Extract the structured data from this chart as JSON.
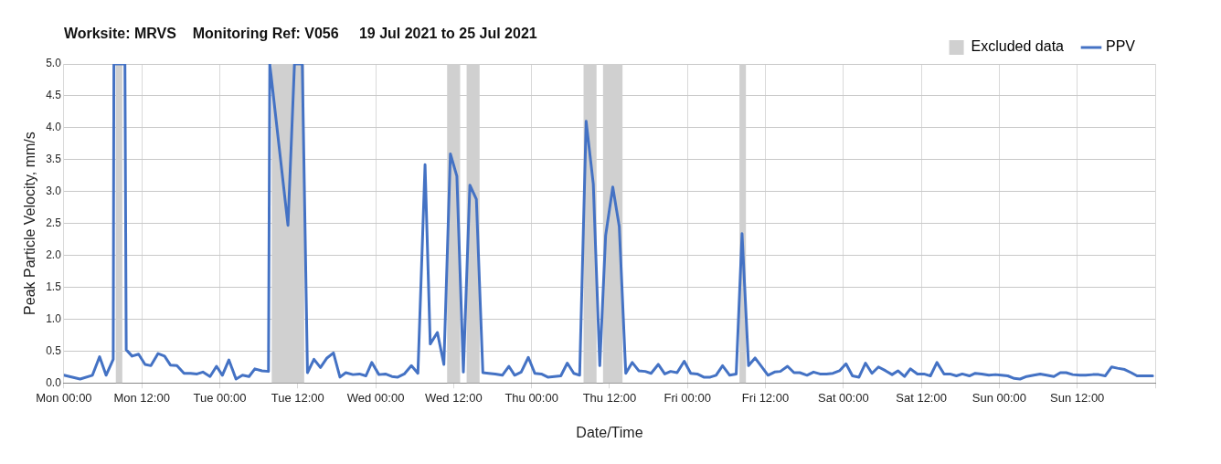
{
  "chart_data": {
    "type": "line",
    "title": "Worksite: MRVS    Monitoring Ref: V056     19 Jul 2021 to 25 Jul 2021",
    "xlabel": "Date/Time",
    "ylabel": "Peak Particle Velocity, mm/s",
    "xlim": [
      "2021-07-19T00:00",
      "2021-07-26T00:00"
    ],
    "xticks": [
      {
        "value": "2021-07-19T00:00",
        "label": "Mon 00:00"
      },
      {
        "value": "2021-07-19T12:00",
        "label": "Mon 12:00"
      },
      {
        "value": "2021-07-20T00:00",
        "label": "Tue 00:00"
      },
      {
        "value": "2021-07-20T12:00",
        "label": "Tue 12:00"
      },
      {
        "value": "2021-07-21T00:00",
        "label": "Wed 00:00"
      },
      {
        "value": "2021-07-21T12:00",
        "label": "Wed 12:00"
      },
      {
        "value": "2021-07-22T00:00",
        "label": "Thu 00:00"
      },
      {
        "value": "2021-07-22T12:00",
        "label": "Thu 12:00"
      },
      {
        "value": "2021-07-23T00:00",
        "label": "Fri 00:00"
      },
      {
        "value": "2021-07-23T12:00",
        "label": "Fri 12:00"
      },
      {
        "value": "2021-07-24T00:00",
        "label": "Sat 00:00"
      },
      {
        "value": "2021-07-24T12:00",
        "label": "Sat 12:00"
      },
      {
        "value": "2021-07-25T00:00",
        "label": "Sun 00:00"
      },
      {
        "value": "2021-07-25T12:00",
        "label": "Sun 12:00"
      },
      {
        "value": "2021-07-26T00:00",
        "label": null
      }
    ],
    "ylim": [
      0,
      5
    ],
    "yticks": [
      {
        "value": 0,
        "label": "0.0"
      },
      {
        "value": 0.5,
        "label": "0.5"
      },
      {
        "value": 1,
        "label": "1.0"
      },
      {
        "value": 1.5,
        "label": "1.5"
      },
      {
        "value": 2,
        "label": "2.0"
      },
      {
        "value": 2.5,
        "label": "2.5"
      },
      {
        "value": 3,
        "label": "3.0"
      },
      {
        "value": 3.5,
        "label": "3.5"
      },
      {
        "value": 4,
        "label": "4.0"
      },
      {
        "value": 4.5,
        "label": "4.5"
      },
      {
        "value": 5,
        "label": "5.0"
      }
    ],
    "grid": true,
    "legend": "top right",
    "marker": "none",
    "line_style": "solid",
    "bands": [
      {
        "axis": "x",
        "from": "2021-07-19T08:00",
        "to": "2021-07-19T09:00",
        "label": "Excluded data",
        "color": "#d0d0d0"
      },
      {
        "axis": "x",
        "from": "2021-07-20T08:00",
        "to": "2021-07-20T13:00",
        "color": "#d0d0d0"
      },
      {
        "axis": "x",
        "from": "2021-07-21T11:00",
        "to": "2021-07-21T13:00",
        "color": "#d0d0d0"
      },
      {
        "axis": "x",
        "from": "2021-07-21T14:00",
        "to": "2021-07-21T16:00",
        "color": "#d0d0d0"
      },
      {
        "axis": "x",
        "from": "2021-07-22T08:00",
        "to": "2021-07-22T10:00",
        "color": "#d0d0d0"
      },
      {
        "axis": "x",
        "from": "2021-07-22T11:00",
        "to": "2021-07-22T14:00",
        "color": "#d0d0d0"
      },
      {
        "axis": "x",
        "from": "2021-07-23T08:00",
        "to": "2021-07-23T09:00",
        "color": "#d0d0d0"
      }
    ],
    "series": [
      {
        "name": "PPV",
        "color": "#4472c4",
        "x": [
          "2021-07-19T00:00",
          "2021-07-19T02:30",
          "2021-07-19T04:24",
          "2021-07-19T05:30",
          "2021-07-19T06:30",
          "2021-07-19T07:36",
          "2021-07-19T07:42",
          "2021-07-19T09:24",
          "2021-07-19T09:36",
          "2021-07-19T10:30",
          "2021-07-19T11:30",
          "2021-07-19T12:30",
          "2021-07-19T13:24",
          "2021-07-19T14:30",
          "2021-07-19T15:30",
          "2021-07-19T16:24",
          "2021-07-19T17:24",
          "2021-07-19T18:30",
          "2021-07-19T19:30",
          "2021-07-19T20:30",
          "2021-07-19T21:24",
          "2021-07-19T22:30",
          "2021-07-19T23:30",
          "2021-07-20T00:24",
          "2021-07-20T01:24",
          "2021-07-20T02:30",
          "2021-07-20T03:30",
          "2021-07-20T04:30",
          "2021-07-20T05:24",
          "2021-07-20T06:30",
          "2021-07-20T07:30",
          "2021-07-20T07:42",
          "2021-07-20T10:30",
          "2021-07-20T11:30",
          "2021-07-20T12:42",
          "2021-07-20T13:30",
          "2021-07-20T14:30",
          "2021-07-20T15:30",
          "2021-07-20T16:30",
          "2021-07-20T17:30",
          "2021-07-20T18:30",
          "2021-07-20T19:24",
          "2021-07-20T20:30",
          "2021-07-20T21:30",
          "2021-07-20T22:30",
          "2021-07-20T23:24",
          "2021-07-21T00:30",
          "2021-07-21T01:30",
          "2021-07-21T02:30",
          "2021-07-21T03:24",
          "2021-07-21T04:24",
          "2021-07-21T05:30",
          "2021-07-21T06:30",
          "2021-07-21T07:36",
          "2021-07-21T08:24",
          "2021-07-21T09:30",
          "2021-07-21T10:30",
          "2021-07-21T11:30",
          "2021-07-21T12:30",
          "2021-07-21T13:30",
          "2021-07-21T14:30",
          "2021-07-21T15:30",
          "2021-07-21T16:30",
          "2021-07-21T17:24",
          "2021-07-21T18:24",
          "2021-07-21T19:30",
          "2021-07-21T20:30",
          "2021-07-21T21:24",
          "2021-07-21T22:24",
          "2021-07-21T23:30",
          "2021-07-22T00:30",
          "2021-07-22T01:30",
          "2021-07-22T02:30",
          "2021-07-22T03:30",
          "2021-07-22T04:30",
          "2021-07-22T05:30",
          "2021-07-22T06:30",
          "2021-07-22T07:24",
          "2021-07-22T08:24",
          "2021-07-22T09:30",
          "2021-07-22T10:30",
          "2021-07-22T11:24",
          "2021-07-22T12:30",
          "2021-07-22T13:30",
          "2021-07-22T14:30",
          "2021-07-22T15:30",
          "2021-07-22T16:30",
          "2021-07-22T17:30",
          "2021-07-22T18:24",
          "2021-07-22T19:30",
          "2021-07-22T20:30",
          "2021-07-22T21:24",
          "2021-07-22T22:24",
          "2021-07-22T23:30",
          "2021-07-23T00:30",
          "2021-07-23T01:30",
          "2021-07-23T02:30",
          "2021-07-23T03:30",
          "2021-07-23T04:24",
          "2021-07-23T05:24",
          "2021-07-23T06:30",
          "2021-07-23T07:30",
          "2021-07-23T08:24",
          "2021-07-23T09:24",
          "2021-07-23T10:24",
          "2021-07-23T11:18",
          "2021-07-23T12:24",
          "2021-07-23T13:24",
          "2021-07-23T14:18",
          "2021-07-23T15:24",
          "2021-07-23T16:24",
          "2021-07-23T17:18",
          "2021-07-23T18:24",
          "2021-07-23T19:24",
          "2021-07-23T20:24",
          "2021-07-23T21:24",
          "2021-07-23T22:24",
          "2021-07-23T23:24",
          "2021-07-24T00:24",
          "2021-07-24T01:24",
          "2021-07-24T02:24",
          "2021-07-24T03:24",
          "2021-07-24T04:24",
          "2021-07-24T05:24",
          "2021-07-24T06:30",
          "2021-07-24T07:30",
          "2021-07-24T08:24",
          "2021-07-24T09:24",
          "2021-07-24T10:18",
          "2021-07-24T11:24",
          "2021-07-24T12:24",
          "2021-07-24T13:24",
          "2021-07-24T14:24",
          "2021-07-24T15:30",
          "2021-07-24T16:24",
          "2021-07-24T17:24",
          "2021-07-24T18:18",
          "2021-07-24T19:24",
          "2021-07-24T20:18",
          "2021-07-24T21:18",
          "2021-07-24T22:24",
          "2021-07-24T23:24",
          "2021-07-25T00:18",
          "2021-07-25T01:18",
          "2021-07-25T02:18",
          "2021-07-25T03:12",
          "2021-07-25T04:12",
          "2021-07-25T05:18",
          "2021-07-25T06:18",
          "2021-07-25T07:18",
          "2021-07-25T08:24",
          "2021-07-25T09:24",
          "2021-07-25T10:18",
          "2021-07-25T11:18",
          "2021-07-25T12:24",
          "2021-07-25T13:18",
          "2021-07-25T14:24",
          "2021-07-25T15:18",
          "2021-07-25T16:18",
          "2021-07-25T17:18",
          "2021-07-25T18:12",
          "2021-07-25T19:18",
          "2021-07-25T20:18",
          "2021-07-25T21:12",
          "2021-07-25T22:18",
          "2021-07-25T23:36"
        ],
        "values": [
          0.12,
          0.06,
          0.12,
          0.41,
          0.12,
          0.37,
          5.0,
          5.0,
          0.52,
          0.42,
          0.45,
          0.29,
          0.27,
          0.46,
          0.42,
          0.28,
          0.27,
          0.15,
          0.15,
          0.14,
          0.17,
          0.1,
          0.26,
          0.12,
          0.36,
          0.06,
          0.12,
          0.1,
          0.22,
          0.19,
          0.18,
          5.0,
          2.47,
          5.0,
          5.0,
          0.16,
          0.37,
          0.24,
          0.39,
          0.47,
          0.09,
          0.16,
          0.13,
          0.14,
          0.11,
          0.32,
          0.13,
          0.14,
          0.1,
          0.09,
          0.14,
          0.27,
          0.15,
          3.42,
          0.61,
          0.79,
          0.29,
          3.59,
          3.24,
          0.17,
          3.1,
          2.88,
          0.16,
          0.15,
          0.14,
          0.12,
          0.26,
          0.12,
          0.17,
          0.4,
          0.15,
          0.14,
          0.09,
          0.1,
          0.11,
          0.31,
          0.15,
          0.12,
          4.1,
          3.12,
          0.27,
          2.31,
          3.07,
          2.45,
          0.15,
          0.32,
          0.19,
          0.18,
          0.15,
          0.29,
          0.14,
          0.18,
          0.16,
          0.34,
          0.15,
          0.14,
          0.09,
          0.09,
          0.12,
          0.27,
          0.12,
          0.14,
          2.34,
          0.27,
          0.39,
          0.27,
          0.12,
          0.17,
          0.18,
          0.26,
          0.16,
          0.16,
          0.12,
          0.17,
          0.14,
          0.14,
          0.15,
          0.19,
          0.3,
          0.11,
          0.09,
          0.31,
          0.15,
          0.25,
          0.19,
          0.13,
          0.19,
          0.1,
          0.22,
          0.14,
          0.14,
          0.11,
          0.32,
          0.14,
          0.14,
          0.11,
          0.14,
          0.11,
          0.15,
          0.14,
          0.12,
          0.13,
          0.12,
          0.11,
          0.07,
          0.06,
          0.1,
          0.12,
          0.14,
          0.12,
          0.1,
          0.16,
          0.16,
          0.13,
          0.12,
          0.12,
          0.13,
          0.13,
          0.11,
          0.25,
          0.23,
          0.21,
          0.16,
          0.11,
          0.11,
          0.11
        ]
      }
    ]
  }
}
